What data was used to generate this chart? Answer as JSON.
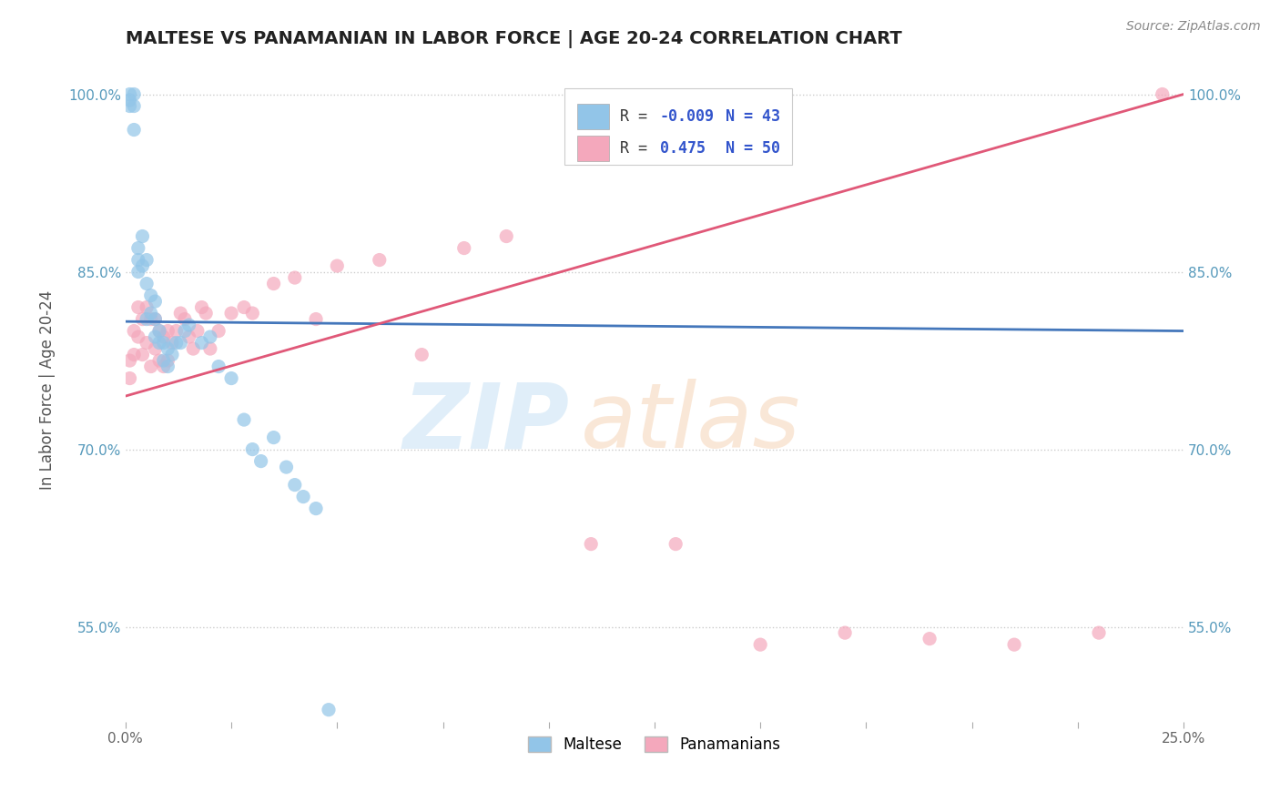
{
  "title": "MALTESE VS PANAMANIAN IN LABOR FORCE | AGE 20-24 CORRELATION CHART",
  "source_text": "Source: ZipAtlas.com",
  "ylabel": "In Labor Force | Age 20-24",
  "xlim": [
    0.0,
    0.25
  ],
  "ylim": [
    0.47,
    1.03
  ],
  "xticks": [
    0.0,
    0.025,
    0.05,
    0.075,
    0.1,
    0.125,
    0.15,
    0.175,
    0.2,
    0.225,
    0.25
  ],
  "xticklabels": [
    "0.0%",
    "",
    "",
    "",
    "",
    "",
    "",
    "",
    "",
    "",
    "25.0%"
  ],
  "yticks": [
    0.55,
    0.7,
    0.85,
    1.0
  ],
  "yticklabels": [
    "55.0%",
    "70.0%",
    "85.0%",
    "100.0%"
  ],
  "maltese_color": "#92c5e8",
  "panamanian_color": "#f4a8bc",
  "maltese_line_color": "#4477bb",
  "panamanian_line_color": "#e05878",
  "maltese_R": -0.009,
  "maltese_N": 43,
  "panamanian_R": 0.475,
  "panamanian_N": 50,
  "background_color": "#ffffff",
  "grid_color": "#cccccc",
  "tick_color": "#5599bb",
  "maltese_x": [
    0.001,
    0.001,
    0.001,
    0.002,
    0.002,
    0.002,
    0.003,
    0.003,
    0.003,
    0.004,
    0.004,
    0.005,
    0.005,
    0.005,
    0.006,
    0.006,
    0.007,
    0.007,
    0.007,
    0.008,
    0.008,
    0.009,
    0.009,
    0.01,
    0.01,
    0.011,
    0.012,
    0.013,
    0.014,
    0.015,
    0.018,
    0.02,
    0.022,
    0.025,
    0.028,
    0.03,
    0.032,
    0.035,
    0.038,
    0.04,
    0.042,
    0.045,
    0.048
  ],
  "maltese_y": [
    0.99,
    1.0,
    0.995,
    0.97,
    1.0,
    0.99,
    0.87,
    0.86,
    0.85,
    0.88,
    0.855,
    0.86,
    0.84,
    0.81,
    0.83,
    0.815,
    0.81,
    0.795,
    0.825,
    0.8,
    0.79,
    0.79,
    0.775,
    0.785,
    0.77,
    0.78,
    0.79,
    0.79,
    0.8,
    0.805,
    0.79,
    0.795,
    0.77,
    0.76,
    0.725,
    0.7,
    0.69,
    0.71,
    0.685,
    0.67,
    0.66,
    0.65,
    0.48
  ],
  "panamanian_x": [
    0.001,
    0.001,
    0.002,
    0.002,
    0.003,
    0.003,
    0.004,
    0.004,
    0.005,
    0.005,
    0.006,
    0.006,
    0.007,
    0.007,
    0.008,
    0.008,
    0.009,
    0.009,
    0.01,
    0.01,
    0.011,
    0.012,
    0.013,
    0.014,
    0.015,
    0.016,
    0.017,
    0.018,
    0.019,
    0.02,
    0.022,
    0.025,
    0.028,
    0.03,
    0.035,
    0.04,
    0.045,
    0.05,
    0.06,
    0.07,
    0.08,
    0.09,
    0.11,
    0.13,
    0.15,
    0.17,
    0.19,
    0.21,
    0.23,
    0.245
  ],
  "panamanian_y": [
    0.775,
    0.76,
    0.8,
    0.78,
    0.82,
    0.795,
    0.81,
    0.78,
    0.79,
    0.82,
    0.81,
    0.77,
    0.81,
    0.785,
    0.8,
    0.775,
    0.795,
    0.77,
    0.8,
    0.775,
    0.79,
    0.8,
    0.815,
    0.81,
    0.795,
    0.785,
    0.8,
    0.82,
    0.815,
    0.785,
    0.8,
    0.815,
    0.82,
    0.815,
    0.84,
    0.845,
    0.81,
    0.855,
    0.86,
    0.78,
    0.87,
    0.88,
    0.62,
    0.62,
    0.535,
    0.545,
    0.54,
    0.535,
    0.545,
    1.0
  ],
  "maltese_trend_x": [
    0.0,
    0.25
  ],
  "maltese_trend_y": [
    0.808,
    0.8
  ],
  "panamanian_trend_x": [
    0.0,
    0.25
  ],
  "panamanian_trend_y": [
    0.745,
    1.0
  ]
}
